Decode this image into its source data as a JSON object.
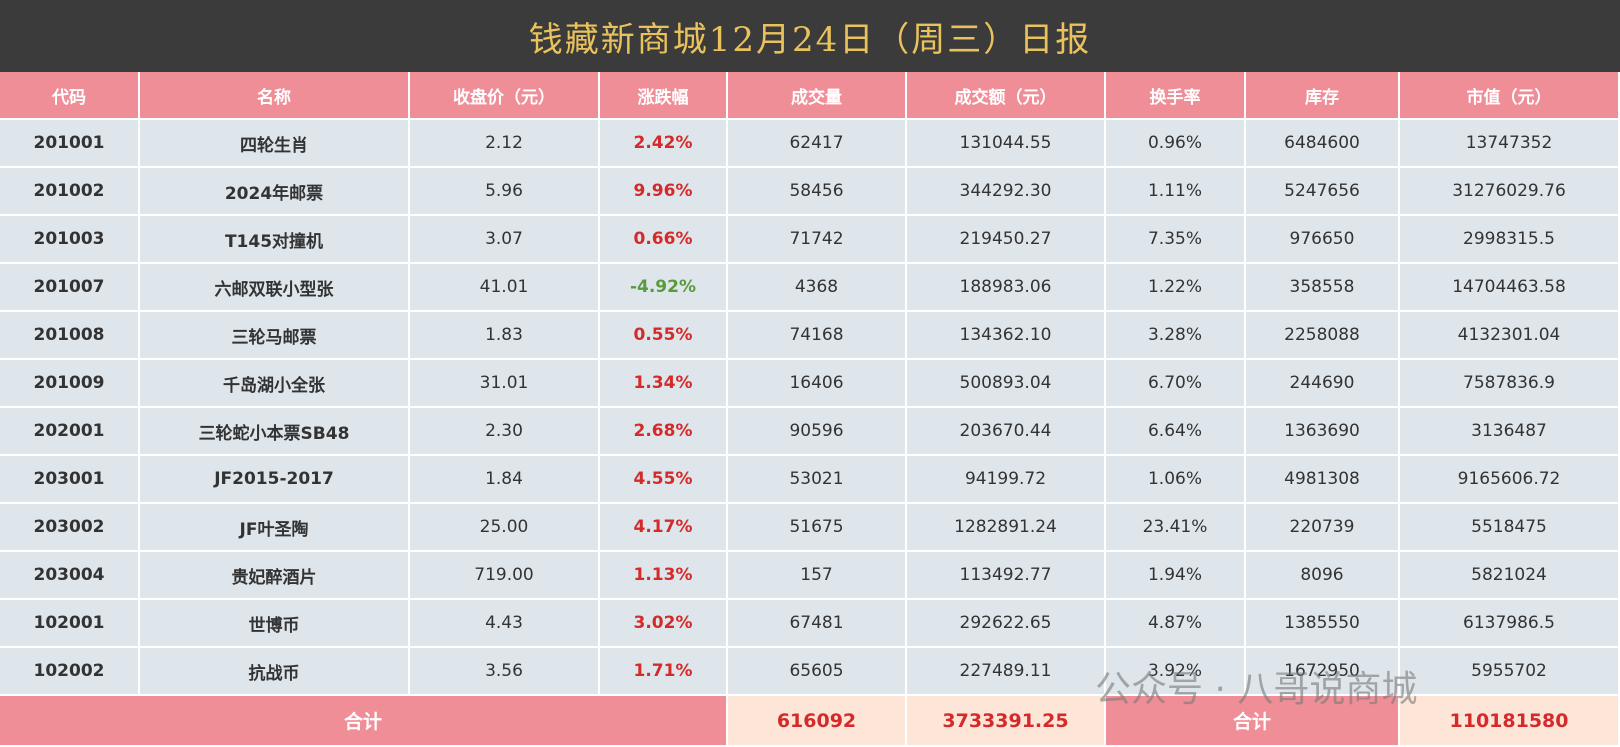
{
  "title": "钱藏新商城12月24日（周三）日报",
  "table": {
    "header": [
      "代码",
      "名称",
      "收盘价（元）",
      "涨跌幅",
      "成交量",
      "成交额（元）",
      "换手率",
      "库存",
      "市值（元）"
    ],
    "rows": [
      [
        "201001",
        "四轮生肖",
        "2.12",
        "2.42%",
        "62417",
        "131044.55",
        "0.96%",
        "6484600",
        "13747352"
      ],
      [
        "201002",
        "2024年邮票",
        "5.96",
        "9.96%",
        "58456",
        "344292.30",
        "1.11%",
        "5247656",
        "31276029.76"
      ],
      [
        "201003",
        "T145对撞机",
        "3.07",
        "0.66%",
        "71742",
        "219450.27",
        "7.35%",
        "976650",
        "2998315.5"
      ],
      [
        "201007",
        "六邮双联小型张",
        "41.01",
        "-4.92%",
        "4368",
        "188983.06",
        "1.22%",
        "358558",
        "14704463.58"
      ],
      [
        "201008",
        "三轮马邮票",
        "1.83",
        "0.55%",
        "74168",
        "134362.10",
        "3.28%",
        "2258088",
        "4132301.04"
      ],
      [
        "201009",
        "千岛湖小全张",
        "31.01",
        "1.34%",
        "16406",
        "500893.04",
        "6.70%",
        "244690",
        "7587836.9"
      ],
      [
        "202001",
        "三轮蛇小本票SB48",
        "2.30",
        "2.68%",
        "90596",
        "203670.44",
        "6.64%",
        "1363690",
        "3136487"
      ],
      [
        "203001",
        "JF2015-2017",
        "1.84",
        "4.55%",
        "53021",
        "94199.72",
        "1.06%",
        "4981308",
        "9165606.72"
      ],
      [
        "203002",
        "JF叶圣陶",
        "25.00",
        "4.17%",
        "51675",
        "1282891.24",
        "23.41%",
        "220739",
        "5518475"
      ],
      [
        "203004",
        "贵妃醉酒片",
        "719.00",
        "1.13%",
        "157",
        "113492.77",
        "1.94%",
        "8096",
        "5821024"
      ],
      [
        "102001",
        "世博币",
        "4.43",
        "3.02%",
        "67481",
        "292622.65",
        "4.87%",
        "1385550",
        "6137986.5"
      ],
      [
        "102002",
        "抗战币",
        "3.56",
        "1.71%",
        "65605",
        "227489.11",
        "3.92%",
        "1672950",
        "5955702"
      ]
    ],
    "footer": [
      "合计",
      "616092",
      "3733391.25",
      "合计",
      "110181580"
    ]
  },
  "watermark": "公众号 · 八哥说商城"
}
